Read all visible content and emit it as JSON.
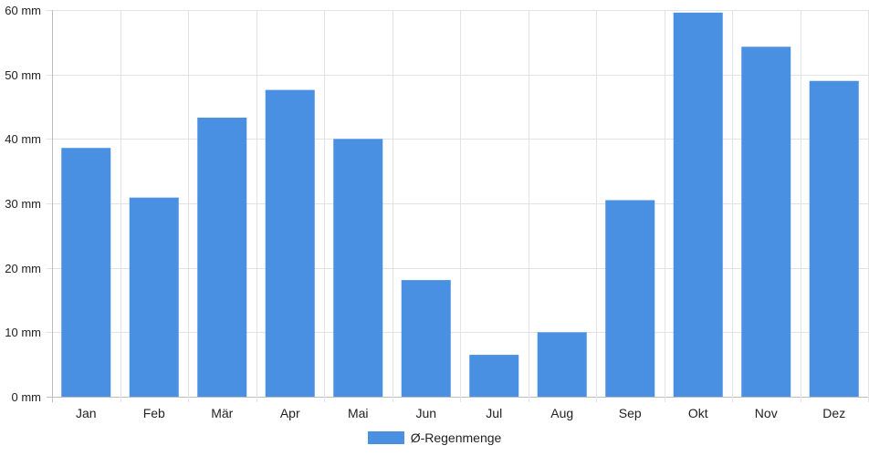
{
  "chart_data": {
    "type": "bar",
    "categories": [
      "Jan",
      "Feb",
      "Mär",
      "Apr",
      "Mai",
      "Jun",
      "Jul",
      "Aug",
      "Sep",
      "Okt",
      "Nov",
      "Dez"
    ],
    "series": [
      {
        "name": "Ø-Regenmenge",
        "values": [
          38.6,
          30.9,
          43.3,
          47.6,
          40.0,
          18.1,
          6.5,
          10.0,
          30.5,
          59.6,
          54.3,
          49.0
        ],
        "color": "#4a90e2"
      }
    ],
    "y_ticks": [
      "0 mm",
      "10 mm",
      "20 mm",
      "30 mm",
      "40 mm",
      "50 mm",
      "60 mm"
    ],
    "ylim": [
      0,
      60
    ],
    "grid": true,
    "legend_position": "bottom-center"
  }
}
